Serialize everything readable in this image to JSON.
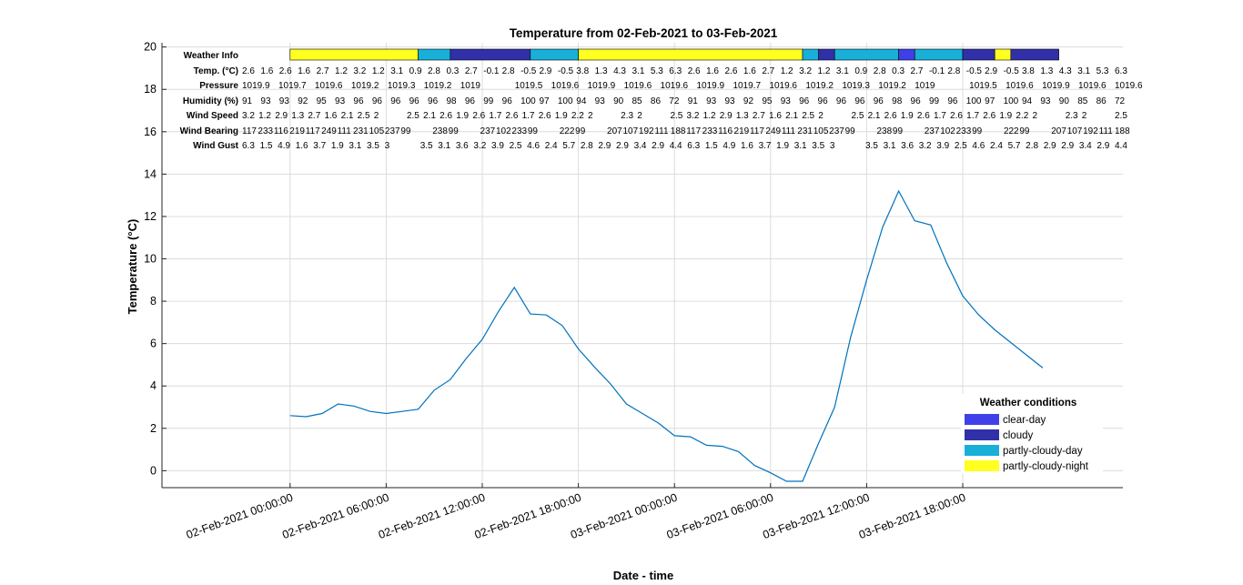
{
  "chart_data": {
    "type": "line",
    "title": "Temperature from 02-Feb-2021 to 03-Feb-2021",
    "xlabel": "Date - time",
    "ylabel": "Temperature (°C)",
    "xlim": [
      "2021-02-01 16:00",
      "2021-02-04 04:00"
    ],
    "ylim": [
      -0.8,
      20.2
    ],
    "yticks": [
      0,
      2,
      4,
      6,
      8,
      10,
      12,
      14,
      16,
      18,
      20
    ],
    "xticks": [
      {
        "t": "2021-02-02 00:00",
        "label": "02-Feb-2021 00:00:00"
      },
      {
        "t": "2021-02-02 06:00",
        "label": "02-Feb-2021 06:00:00"
      },
      {
        "t": "2021-02-02 12:00",
        "label": "02-Feb-2021 12:00:00"
      },
      {
        "t": "2021-02-02 18:00",
        "label": "02-Feb-2021 18:00:00"
      },
      {
        "t": "2021-02-03 00:00",
        "label": "03-Feb-2021 00:00:00"
      },
      {
        "t": "2021-02-03 06:00",
        "label": "03-Feb-2021 06:00:00"
      },
      {
        "t": "2021-02-03 12:00",
        "label": "03-Feb-2021 12:00:00"
      },
      {
        "t": "2021-02-03 18:00",
        "label": "03-Feb-2021 18:00:00"
      }
    ],
    "grid": true,
    "series": [
      {
        "color": "#0072BD",
        "points": [
          [
            "2021-02-02 00:00",
            2.6
          ],
          [
            "2021-02-02 01:00",
            2.55
          ],
          [
            "2021-02-02 02:00",
            2.7
          ],
          [
            "2021-02-02 03:00",
            3.15
          ],
          [
            "2021-02-02 04:00",
            3.05
          ],
          [
            "2021-02-02 05:00",
            2.8
          ],
          [
            "2021-02-02 06:00",
            2.7
          ],
          [
            "2021-02-02 07:00",
            2.8
          ],
          [
            "2021-02-02 08:00",
            2.9
          ],
          [
            "2021-02-02 09:00",
            3.8
          ],
          [
            "2021-02-02 10:00",
            4.3
          ],
          [
            "2021-02-02 11:00",
            5.3
          ],
          [
            "2021-02-02 12:00",
            6.2
          ],
          [
            "2021-02-02 13:00",
            7.5
          ],
          [
            "2021-02-02 14:00",
            8.65
          ],
          [
            "2021-02-02 15:00",
            7.4
          ],
          [
            "2021-02-02 16:00",
            7.35
          ],
          [
            "2021-02-02 17:00",
            6.85
          ],
          [
            "2021-02-02 18:00",
            5.75
          ],
          [
            "2021-02-02 19:00",
            4.9
          ],
          [
            "2021-02-02 20:00",
            4.1
          ],
          [
            "2021-02-02 21:00",
            3.15
          ],
          [
            "2021-02-02 22:00",
            2.7
          ],
          [
            "2021-02-02 23:00",
            2.25
          ],
          [
            "2021-02-03 00:00",
            1.65
          ],
          [
            "2021-02-03 01:00",
            1.6
          ],
          [
            "2021-02-03 02:00",
            1.2
          ],
          [
            "2021-02-03 03:00",
            1.15
          ],
          [
            "2021-02-03 04:00",
            0.9
          ],
          [
            "2021-02-03 05:00",
            0.25
          ],
          [
            "2021-02-03 06:00",
            -0.1
          ],
          [
            "2021-02-03 07:00",
            -0.5
          ],
          [
            "2021-02-03 08:00",
            -0.5
          ],
          [
            "2021-02-03 09:00",
            1.3
          ],
          [
            "2021-02-03 10:00",
            3.0
          ],
          [
            "2021-02-03 11:00",
            6.3
          ],
          [
            "2021-02-03 12:00",
            9.0
          ],
          [
            "2021-02-03 13:00",
            11.5
          ],
          [
            "2021-02-03 14:00",
            13.2
          ],
          [
            "2021-02-03 15:00",
            11.8
          ],
          [
            "2021-02-03 16:00",
            11.6
          ],
          [
            "2021-02-03 17:00",
            9.8
          ],
          [
            "2021-02-03 18:00",
            8.25
          ],
          [
            "2021-02-03 19:00",
            7.35
          ],
          [
            "2021-02-03 20:00",
            6.65
          ],
          [
            "2021-02-03 21:00",
            6.05
          ],
          [
            "2021-02-03 22:00",
            5.45
          ],
          [
            "2021-02-03 23:00",
            4.85
          ]
        ]
      }
    ],
    "info_table": {
      "rows": [
        {
          "label": "Weather Info",
          "type": "bar"
        },
        {
          "label": "Temp. (°C)",
          "values": [
            "2.6",
            "1.6",
            "2.6",
            "1.6",
            "2.7",
            "1.2",
            "3.2",
            "1.2",
            "3.1",
            "0.9",
            "2.8",
            "0.3",
            "2.7",
            "-0.1",
            "2.8",
            "-0.5",
            "2.9",
            "-0.5",
            "3.8",
            "1.3",
            "4.3",
            "3.1",
            "5.3",
            "6.3",
            "2.6",
            "1.6",
            "2.6",
            "1.6",
            "2.7",
            "1.2",
            "3.2",
            "1.2",
            "3.1",
            "0.9",
            "2.8",
            "0.3",
            "2.7",
            "-0.1",
            "2.8",
            "-0.5",
            "2.9",
            "-0.5",
            "3.8",
            "1.3",
            "4.3",
            "3.1",
            "5.3",
            "6.3"
          ]
        },
        {
          "label": "Pressure",
          "values": [
            "1019.9",
            "",
            "1019.7",
            "",
            "1019.6",
            "",
            "1019.2",
            "",
            "1019.3",
            "",
            "1019.2",
            "",
            "1019",
            "",
            "",
            "1019.5",
            "",
            "1019.6",
            "",
            "1019.9",
            "",
            "1019.6",
            "",
            "1019.6",
            "",
            "1019.9",
            "",
            "1019.7",
            "",
            "1019.6",
            "",
            "1019.2",
            "",
            "1019.3",
            "",
            "1019.2",
            "",
            "1019",
            "",
            "",
            "1019.5",
            "",
            "1019.6",
            "",
            "1019.9",
            "",
            "1019.6",
            "",
            "1019.6"
          ]
        },
        {
          "label": "Humidity (%)",
          "values": [
            "91",
            "93",
            "93",
            "92",
            "95",
            "93",
            "96",
            "96",
            "96",
            "96",
            "96",
            "98",
            "96",
            "99",
            "96",
            "100",
            "97",
            "100",
            "94",
            "93",
            "90",
            "85",
            "86",
            "72",
            "91",
            "93",
            "93",
            "92",
            "95",
            "93",
            "96",
            "96",
            "96",
            "96",
            "96",
            "98",
            "96",
            "99",
            "96",
            "100",
            "97",
            "100",
            "94",
            "93",
            "90",
            "85",
            "86",
            "72"
          ]
        },
        {
          "label": "Wind Speed",
          "values": [
            "3.2",
            "1.2",
            "2.9",
            "1.3",
            "2.7",
            "1.6",
            "2.1",
            "2.5",
            "2",
            "",
            "2.5",
            "2.1",
            "2.6",
            "1.9",
            "2.6",
            "1.7",
            "2.6",
            "1.7",
            "2.6",
            "1.9",
            "2.2",
            "2",
            "",
            "2.3",
            "2",
            "",
            "2.5",
            "3.2",
            "1.2",
            "2.9",
            "1.3",
            "2.7",
            "1.6",
            "2.1",
            "2.5",
            "2",
            "",
            "2.5",
            "2.1",
            "2.6",
            "1.9",
            "2.6",
            "1.7",
            "2.6",
            "1.7",
            "2.6",
            "1.9",
            "2.2",
            "2",
            "",
            "2.3",
            "2",
            "",
            "2.5"
          ]
        },
        {
          "label": "Wind Bearing",
          "values": [
            "117",
            "233",
            "116",
            "219",
            "117",
            "249",
            "111",
            "231",
            "105",
            "237",
            "99",
            "",
            "238",
            "99",
            "",
            "237",
            "102",
            "233",
            "99",
            "",
            "222",
            "99",
            "",
            "207",
            "107",
            "192",
            "111",
            "188",
            "117",
            "233",
            "116",
            "219",
            "117",
            "249",
            "111",
            "231",
            "105",
            "237",
            "99",
            "",
            "238",
            "99",
            "",
            "237",
            "102",
            "233",
            "99",
            "",
            "222",
            "99",
            "",
            "207",
            "107",
            "192",
            "111",
            "188"
          ]
        },
        {
          "label": "Wind Gust",
          "values": [
            "6.3",
            "1.5",
            "4.9",
            "1.6",
            "3.7",
            "1.9",
            "3.1",
            "3.5",
            "3",
            "",
            "3.5",
            "3.1",
            "3.6",
            "3.2",
            "3.9",
            "2.5",
            "4.6",
            "2.4",
            "5.7",
            "2.8",
            "2.9",
            "2.9",
            "3.4",
            "2.9",
            "4.4",
            "6.3",
            "1.5",
            "4.9",
            "1.6",
            "3.7",
            "1.9",
            "3.1",
            "3.5",
            "3",
            "",
            "3.5",
            "3.1",
            "3.6",
            "3.2",
            "3.9",
            "2.5",
            "4.6",
            "2.4",
            "5.7",
            "2.8",
            "2.9",
            "2.9",
            "3.4",
            "2.9",
            "4.4"
          ]
        }
      ],
      "weather_bar": [
        {
          "from": "2021-02-02 00:00",
          "to": "2021-02-02 08:00",
          "condition": "partly-cloudy-night"
        },
        {
          "from": "2021-02-02 08:00",
          "to": "2021-02-02 10:00",
          "condition": "partly-cloudy-day"
        },
        {
          "from": "2021-02-02 10:00",
          "to": "2021-02-02 15:00",
          "condition": "cloudy"
        },
        {
          "from": "2021-02-02 15:00",
          "to": "2021-02-02 18:00",
          "condition": "partly-cloudy-day"
        },
        {
          "from": "2021-02-02 18:00",
          "to": "2021-02-03 08:00",
          "condition": "partly-cloudy-night"
        },
        {
          "from": "2021-02-03 08:00",
          "to": "2021-02-03 09:00",
          "condition": "partly-cloudy-day"
        },
        {
          "from": "2021-02-03 09:00",
          "to": "2021-02-03 10:00",
          "condition": "cloudy"
        },
        {
          "from": "2021-02-03 10:00",
          "to": "2021-02-03 14:00",
          "condition": "partly-cloudy-day"
        },
        {
          "from": "2021-02-03 14:00",
          "to": "2021-02-03 15:00",
          "condition": "clear-day"
        },
        {
          "from": "2021-02-03 15:00",
          "to": "2021-02-03 18:00",
          "condition": "partly-cloudy-day"
        },
        {
          "from": "2021-02-03 18:00",
          "to": "2021-02-03 20:00",
          "condition": "cloudy"
        },
        {
          "from": "2021-02-03 20:00",
          "to": "2021-02-03 21:00",
          "condition": "partly-cloudy-night"
        },
        {
          "from": "2021-02-03 21:00",
          "to": "2021-02-04 00:00",
          "condition": "cloudy"
        }
      ]
    },
    "legend": {
      "title": "Weather conditions",
      "placement": "bottom-right",
      "items": [
        {
          "label": "clear-day",
          "color": "#4040E8"
        },
        {
          "label": "cloudy",
          "color": "#3030A8"
        },
        {
          "label": "partly-cloudy-day",
          "color": "#18B0D8"
        },
        {
          "label": "partly-cloudy-night",
          "color": "#FFFF20"
        }
      ]
    }
  }
}
